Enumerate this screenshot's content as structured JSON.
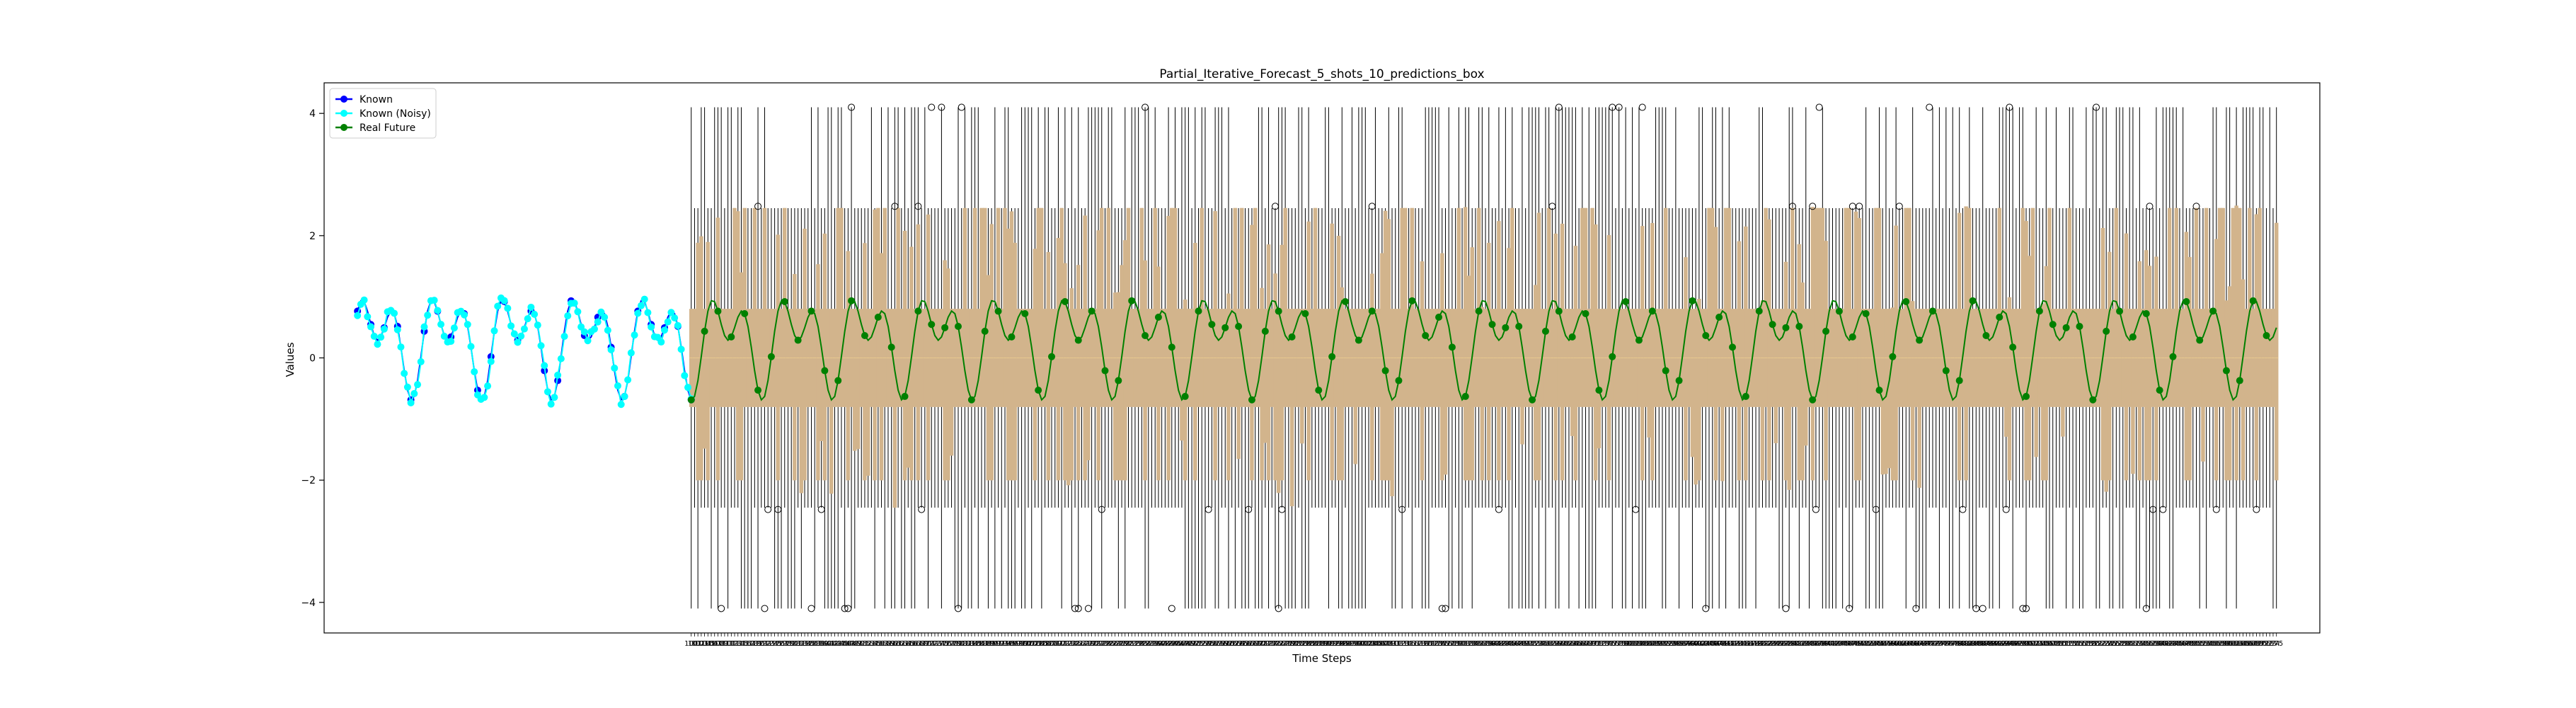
{
  "chart_data": {
    "type": "line",
    "title": "Partial_Iterative_Forecast_5_shots_10_predictions_box",
    "xlabel": "Time Steps",
    "ylabel": "Values",
    "ylim": [
      -4.5,
      4.5
    ],
    "xlim": [
      -10,
      588
    ],
    "yticks": [
      -4,
      -2,
      0,
      2,
      4
    ],
    "ytick_labels": [
      "−4",
      "−2",
      "0",
      "2",
      "4"
    ],
    "grid": false,
    "legend": "top-left",
    "signal": {
      "formula": "0.3 + 0.5*sin(2*pi*t/21) + 0.5*sin(2*pi*t/10.5 + 1.2)",
      "known_range": [
        0,
        100
      ],
      "future_range": [
        100,
        575
      ]
    },
    "series": [
      {
        "name": "Known",
        "color": "#0000ff",
        "marker": "circle",
        "x_start": 0,
        "x_end": 100
      },
      {
        "name": "Known (Noisy)",
        "color": "#00ffff",
        "marker": "circle",
        "x_start": 0,
        "x_end": 100
      },
      {
        "name": "Real Future",
        "color": "#008000",
        "marker": "circle",
        "x_start": 100,
        "x_end": 575
      }
    ],
    "boxplots": {
      "color": "#d2b48c",
      "x_start": 100,
      "x_end": 575,
      "whisker_range": [
        -2.45,
        2.45
      ],
      "outlier_values": [
        4.1,
        -4.1,
        2.48,
        -2.48
      ],
      "tick_labels_note": "overlapping numeric labels from 100 to 575"
    }
  }
}
